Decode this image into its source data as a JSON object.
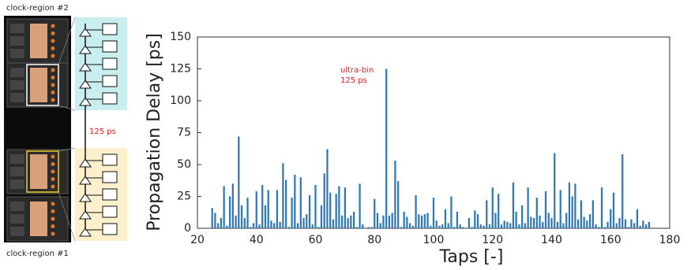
{
  "diagram": {
    "top_label": "clock-region #2",
    "bottom_label": "clock-region #1",
    "delay_label": "125 ps"
  },
  "chart_data": {
    "type": "bar",
    "xlabel": "Taps [-]",
    "ylabel": "Propagation Delay [ps]",
    "annotation": [
      "ultra-bin",
      "125 ps"
    ],
    "color": "#2e78b8",
    "grid": false,
    "xlim": [
      20,
      180
    ],
    "xticks": [
      20,
      40,
      60,
      80,
      100,
      120,
      140,
      160,
      180
    ],
    "ylim": [
      0,
      150
    ],
    "yticks": [
      0,
      25,
      50,
      75,
      100,
      125,
      150
    ],
    "x": [
      25,
      26,
      27,
      28,
      29,
      30,
      31,
      32,
      33,
      34,
      35,
      36,
      37,
      38,
      39,
      40,
      41,
      42,
      43,
      44,
      45,
      46,
      47,
      48,
      49,
      50,
      51,
      52,
      53,
      54,
      55,
      56,
      57,
      58,
      59,
      60,
      61,
      62,
      63,
      64,
      65,
      66,
      67,
      68,
      69,
      70,
      71,
      72,
      73,
      74,
      75,
      76,
      77,
      78,
      79,
      80,
      81,
      82,
      83,
      84,
      85,
      86,
      87,
      88,
      89,
      90,
      91,
      92,
      93,
      94,
      95,
      96,
      97,
      98,
      99,
      100,
      101,
      102,
      103,
      104,
      105,
      106,
      107,
      108,
      109,
      110,
      111,
      112,
      113,
      114,
      115,
      116,
      117,
      118,
      119,
      120,
      121,
      122,
      123,
      124,
      125,
      126,
      127,
      128,
      129,
      130,
      131,
      132,
      133,
      134,
      135,
      136,
      137,
      138,
      139,
      140,
      141,
      142,
      143,
      144,
      145,
      146,
      147,
      148,
      149,
      150,
      151,
      152,
      153,
      154,
      155,
      156,
      157,
      158,
      159,
      160,
      161,
      162,
      163,
      164,
      165,
      166,
      167,
      168,
      169,
      170,
      171,
      172,
      173
    ],
    "values": [
      16,
      12,
      4,
      8,
      33,
      2,
      25,
      35,
      10,
      72,
      18,
      8,
      24,
      1,
      4,
      29,
      3,
      34,
      18,
      30,
      6,
      4,
      30,
      5,
      51,
      38,
      1,
      24,
      42,
      4,
      40,
      8,
      11,
      26,
      3,
      34,
      1,
      18,
      43,
      62,
      28,
      7,
      27,
      33,
      10,
      32,
      8,
      10,
      13,
      1,
      35,
      3,
      0,
      1,
      1,
      23,
      12,
      4,
      10,
      125,
      10,
      12,
      53,
      37,
      1,
      13,
      9,
      4,
      2,
      26,
      11,
      10,
      11,
      12,
      2,
      24,
      6,
      2,
      3,
      15,
      4,
      25,
      1,
      13,
      3,
      1,
      0,
      8,
      1,
      14,
      11,
      3,
      2,
      22,
      3,
      32,
      12,
      27,
      3,
      6,
      5,
      4,
      36,
      13,
      3,
      18,
      4,
      32,
      9,
      8,
      24,
      10,
      5,
      29,
      12,
      8,
      59,
      5,
      30,
      4,
      12,
      36,
      25,
      35,
      7,
      22,
      9,
      6,
      11,
      22,
      3,
      1,
      32,
      1,
      5,
      15,
      28,
      4,
      8,
      58,
      7,
      1,
      7,
      4,
      15,
      2,
      6,
      3,
      5
    ]
  }
}
